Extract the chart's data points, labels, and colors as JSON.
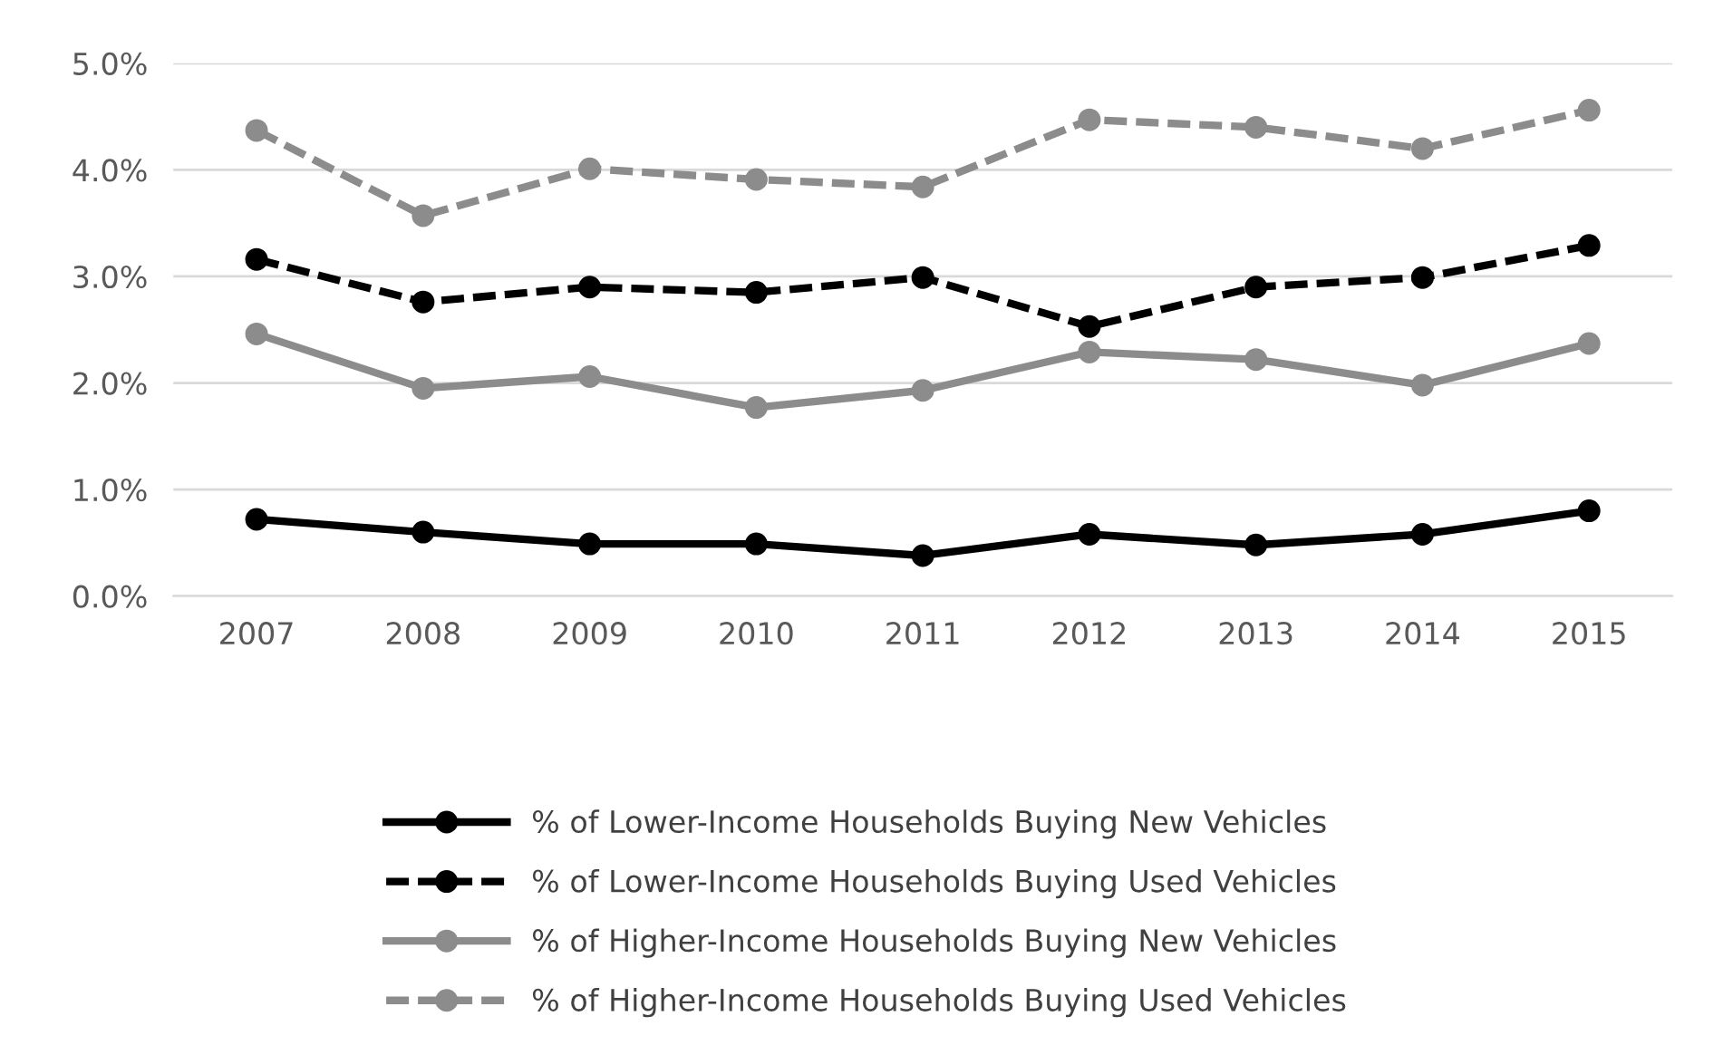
{
  "chart_data": {
    "type": "line",
    "categories": [
      "2007",
      "2008",
      "2009",
      "2010",
      "2011",
      "2012",
      "2013",
      "2014",
      "2015"
    ],
    "series": [
      {
        "name": "% of Lower-Income Households Buying New Vehicles",
        "color": "#000000",
        "line_style": "solid",
        "values": [
          0.72,
          0.6,
          0.49,
          0.49,
          0.38,
          0.58,
          0.48,
          0.58,
          0.8
        ]
      },
      {
        "name": "% of Lower-Income Households Buying Used Vehicles",
        "color": "#000000",
        "line_style": "dashed",
        "values": [
          3.16,
          2.76,
          2.9,
          2.85,
          2.99,
          2.53,
          2.9,
          2.99,
          3.29
        ]
      },
      {
        "name": "% of Higher-Income Households Buying New Vehicles",
        "color": "#8c8c8c",
        "line_style": "solid",
        "values": [
          2.46,
          1.95,
          2.06,
          1.77,
          1.93,
          2.29,
          2.22,
          1.98,
          2.37
        ]
      },
      {
        "name": "% of Higher-Income Households Buying Used Vehicles",
        "color": "#8c8c8c",
        "line_style": "dashed",
        "values": [
          4.37,
          3.57,
          4.01,
          3.91,
          3.84,
          4.47,
          4.4,
          4.2,
          4.56
        ]
      }
    ],
    "ylim": [
      0,
      5
    ],
    "yticks": [
      {
        "value": 0,
        "label": "0.0%"
      },
      {
        "value": 1,
        "label": "1.0%"
      },
      {
        "value": 2,
        "label": "2.0%"
      },
      {
        "value": 3,
        "label": "3.0%"
      },
      {
        "value": 4,
        "label": "4.0%"
      },
      {
        "value": 5,
        "label": "5.0%"
      }
    ],
    "grid": "y",
    "legend": "bottom",
    "marker": "circle"
  }
}
